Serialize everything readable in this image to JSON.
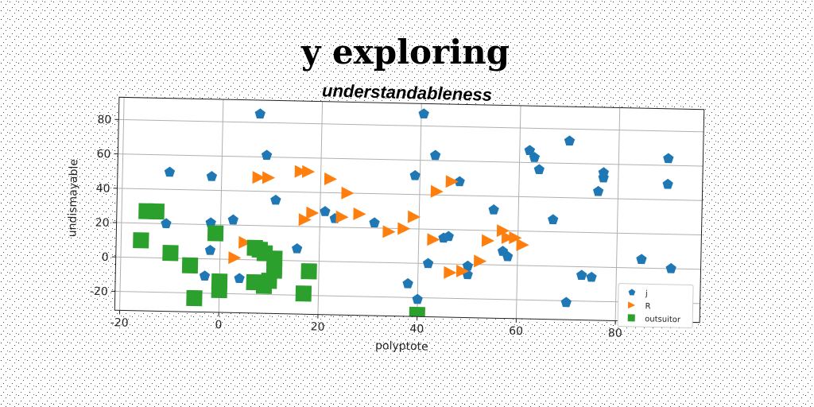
{
  "chart_data": {
    "type": "scatter",
    "title": "y exploring",
    "subtitle": "understandableness",
    "xlabel": "polyptote",
    "ylabel": "undismayable",
    "xlim": [
      -21,
      97
    ],
    "ylim": [
      -31,
      93
    ],
    "xticks": [
      -20,
      0,
      20,
      40,
      60,
      80
    ],
    "yticks": [
      -20,
      0,
      20,
      40,
      60,
      80
    ],
    "grid": true,
    "legend_position": "bottom-right",
    "series": [
      {
        "name": "j",
        "marker": "pentagon",
        "color": "#1f77b4",
        "points": [
          [
            7.5,
            85
          ],
          [
            40.5,
            87
          ],
          [
            -10.5,
            50
          ],
          [
            -2,
            48
          ],
          [
            9,
            61
          ],
          [
            11,
            35
          ],
          [
            -2,
            21
          ],
          [
            2.5,
            23
          ],
          [
            -11,
            20
          ],
          [
            -2,
            5
          ],
          [
            -3,
            -10
          ],
          [
            4,
            -11
          ],
          [
            15.5,
            7
          ],
          [
            21,
            29
          ],
          [
            23,
            25
          ],
          [
            31,
            23
          ],
          [
            39,
            51
          ],
          [
            43,
            63
          ],
          [
            48,
            48
          ],
          [
            45,
            15
          ],
          [
            46,
            16
          ],
          [
            42,
            0
          ],
          [
            50,
            -1
          ],
          [
            50,
            -6
          ],
          [
            55,
            32
          ],
          [
            57,
            8
          ],
          [
            58,
            5
          ],
          [
            62,
            67
          ],
          [
            63,
            63
          ],
          [
            64,
            56
          ],
          [
            67,
            27
          ],
          [
            70,
            73
          ],
          [
            76,
            44
          ],
          [
            77,
            52
          ],
          [
            77,
            55
          ],
          [
            73,
            -5
          ],
          [
            75,
            -6
          ],
          [
            70,
            -21
          ],
          [
            85,
            5
          ],
          [
            90,
            49
          ],
          [
            90,
            64
          ],
          [
            91,
            0
          ],
          [
            38,
            -12
          ],
          [
            40,
            -21
          ]
        ]
      },
      {
        "name": "R",
        "marker": "triangle-right",
        "color": "#ff7f0e",
        "points": [
          [
            7.5,
            48
          ],
          [
            9.5,
            48
          ],
          [
            16,
            52
          ],
          [
            17.5,
            52
          ],
          [
            22,
            48
          ],
          [
            25.5,
            40
          ],
          [
            17,
            24
          ],
          [
            18.5,
            28
          ],
          [
            24.5,
            26
          ],
          [
            28,
            28
          ],
          [
            34,
            18
          ],
          [
            37,
            20
          ],
          [
            39,
            27
          ],
          [
            43,
            14
          ],
          [
            43.5,
            42
          ],
          [
            46.5,
            48
          ],
          [
            54,
            14
          ],
          [
            57,
            20
          ],
          [
            58,
            16
          ],
          [
            59.5,
            16
          ],
          [
            61,
            12
          ],
          [
            52.5,
            2
          ],
          [
            46.5,
            -5
          ],
          [
            5,
            10
          ],
          [
            3,
            1
          ],
          [
            49,
            -4
          ]
        ]
      },
      {
        "name": "outsuitor",
        "marker": "square",
        "color": "#2ca02c",
        "points": [
          [
            -15,
            27
          ],
          [
            -13,
            27
          ],
          [
            -16,
            10
          ],
          [
            -10,
            3
          ],
          [
            -6,
            -4
          ],
          [
            -5,
            -23
          ],
          [
            -1,
            15
          ],
          [
            0,
            -13
          ],
          [
            0,
            -18
          ],
          [
            7,
            7
          ],
          [
            8,
            6
          ],
          [
            9,
            4
          ],
          [
            11,
            1
          ],
          [
            11,
            -6
          ],
          [
            10,
            -12
          ],
          [
            7,
            -13
          ],
          [
            9,
            -15
          ],
          [
            18,
            -6
          ],
          [
            17,
            -19
          ],
          [
            40,
            -30
          ]
        ]
      }
    ]
  }
}
